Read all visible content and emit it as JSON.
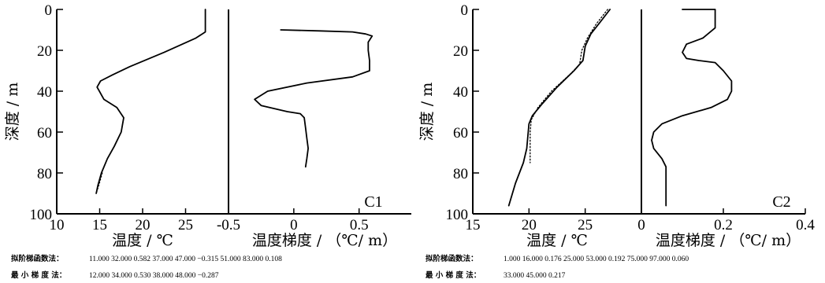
{
  "chart_data": [
    {
      "type": "line",
      "panel_label": "C1",
      "ylabel": "深度 / m",
      "ylim": [
        100,
        0
      ],
      "y_ticks": [
        "0",
        "20",
        "40",
        "60",
        "80",
        "100"
      ],
      "left": {
        "xlabel": "温度 / ℃",
        "xlim": [
          10,
          30
        ],
        "x_ticks": [
          "10",
          "15",
          "20",
          "25"
        ],
        "series": [
          {
            "style": "solid",
            "x": [
              27.3,
              27.3,
              26.2,
              22.5,
              18.5,
              16.5,
              15.1,
              14.7,
              15.5,
              17.0,
              17.8,
              17.5,
              16.7,
              15.9,
              15.2,
              14.8,
              14.6
            ],
            "y": [
              0,
              11,
              14,
              21,
              28,
              32,
              35,
              38,
              44,
              48,
              53,
              60,
              67,
              73,
              80,
              86,
              90
            ]
          },
          {
            "style": "dotted",
            "x": [
              15.3,
              14.9,
              14.6
            ],
            "y": [
              80,
              86,
              90
            ]
          }
        ]
      },
      "right": {
        "xlabel": "温度梯度 / （℃/ m）",
        "xlim": [
          -0.5,
          0.9
        ],
        "x_ticks": [
          "-0.5",
          "0",
          "0.5"
        ],
        "series": [
          {
            "style": "solid",
            "x": [
              -0.1,
              0.2,
              0.45,
              0.55,
              0.6,
              0.57,
              0.57,
              0.58,
              0.58,
              0.45,
              0.1,
              -0.2,
              -0.3,
              -0.25,
              -0.05,
              0.05,
              0.08,
              0.09,
              0.1,
              0.11,
              0.1,
              0.09
            ],
            "y": [
              10,
              10.5,
              11,
              12,
              13,
              16,
              20,
              25,
              30,
              33,
              36,
              40,
              44,
              47,
              50,
              51,
              53,
              58,
              63,
              68,
              73,
              77
            ]
          }
        ]
      },
      "footnote": [
        {
          "method": "拟阶梯函数法：",
          "values": "11.000  32.000  0.582  37.000  47.000  −0.315  51.000  83.000  0.108"
        },
        {
          "method": "最 小 梯 度 法：",
          "values": "12.000  34.000  0.530  38.000  48.000  −0.287"
        }
      ]
    },
    {
      "type": "line",
      "panel_label": "C2",
      "ylabel": "深度 / m",
      "ylim": [
        100,
        0
      ],
      "y_ticks": [
        "0",
        "20",
        "40",
        "60",
        "80",
        "100"
      ],
      "left": {
        "xlabel": "温度 / ℃",
        "xlim": [
          15,
          30
        ],
        "x_ticks": [
          "15",
          "20",
          "25"
        ],
        "series": [
          {
            "style": "solid",
            "x": [
              27.2,
              26.5,
              25.5,
              25.0,
              24.8,
              24.0,
              22.5,
              21.2,
              20.3,
              20.0,
              19.9,
              19.8,
              19.5,
              18.8,
              18.2
            ],
            "y": [
              0,
              5,
              12,
              18,
              25,
              30,
              38,
              46,
              52,
              56,
              62,
              68,
              75,
              85,
              96
            ]
          },
          {
            "style": "dotted",
            "x": [
              27.0,
              26.0,
              25.2,
              24.7,
              24.5,
              23.6,
              22.0,
              20.8,
              20.2,
              20.1,
              20.1
            ],
            "y": [
              0,
              7,
              14,
              20,
              27,
              32,
              40,
              48,
              54,
              60,
              75
            ]
          }
        ]
      },
      "right": {
        "xlabel": "温度梯度 / （℃/ m）",
        "xlim": [
          0,
          0.4
        ],
        "x_ticks": [
          "0",
          "0.2",
          "0.4"
        ],
        "series": [
          {
            "style": "solid",
            "x": [
              0.1,
              0.18,
              0.18,
              0.15,
              0.11,
              0.1,
              0.11,
              0.14,
              0.18,
              0.2,
              0.22,
              0.22,
              0.21,
              0.17,
              0.1,
              0.05,
              0.03,
              0.025,
              0.03,
              0.05,
              0.06,
              0.06,
              0.06
            ],
            "y": [
              0,
              0,
              9,
              14,
              17,
              21,
              24,
              25,
              26,
              30,
              35,
              40,
              44,
              48,
              52,
              56,
              60,
              64,
              68,
              73,
              77,
              86,
              96
            ]
          }
        ]
      },
      "footnote": [
        {
          "method": "拟阶梯函数法：",
          "values": "1.000  16.000  0.176  25.000  53.000  0.192  75.000  97.000  0.060"
        },
        {
          "method": "最 小 梯 度 法：",
          "values": "33.000  45.000  0.217"
        }
      ]
    }
  ]
}
